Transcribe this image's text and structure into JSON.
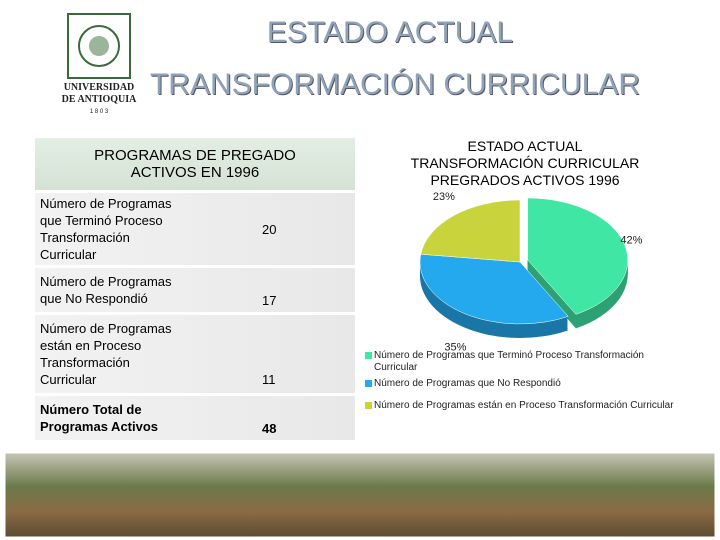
{
  "header": {
    "title": "ESTADO ACTUAL",
    "subtitle": "TRANSFORMACIÓN CURRICULAR",
    "logo": {
      "line1": "UNIVERSIDAD",
      "line2": "DE ANTIOQUIA",
      "year": "1 8 0 3"
    }
  },
  "table": {
    "header": "PROGRAMAS DE PREGADO ACTIVOS EN 1996",
    "rows": [
      [
        "Número de Programas que Terminó Proceso Transformación Curricular",
        "20"
      ],
      [
        "Número de Programas que No Respondió",
        "17"
      ],
      [
        "Número de Programas están en Proceso Transformación Curricular",
        "11"
      ],
      [
        "Número Total de Programas Activos",
        "48"
      ]
    ]
  },
  "chart_data": {
    "type": "pie",
    "title": [
      "ESTADO ACTUAL",
      "TRANSFORMACIÓN CURRICULAR",
      "PREGRADOS ACTIVOS 1996"
    ],
    "categories": [
      "Número de Programas que Terminó Proceso Transformación Curricular",
      "Número de Programas  que No Respondió",
      "Número de Programas están en Proceso Transformación Curricular"
    ],
    "values": [
      42,
      35,
      23
    ],
    "value_labels": [
      "42%",
      "35%",
      "23%"
    ],
    "colors": [
      "#3fe6a4",
      "#24a9ee",
      "#c9d43c"
    ],
    "legend": "bottom"
  }
}
